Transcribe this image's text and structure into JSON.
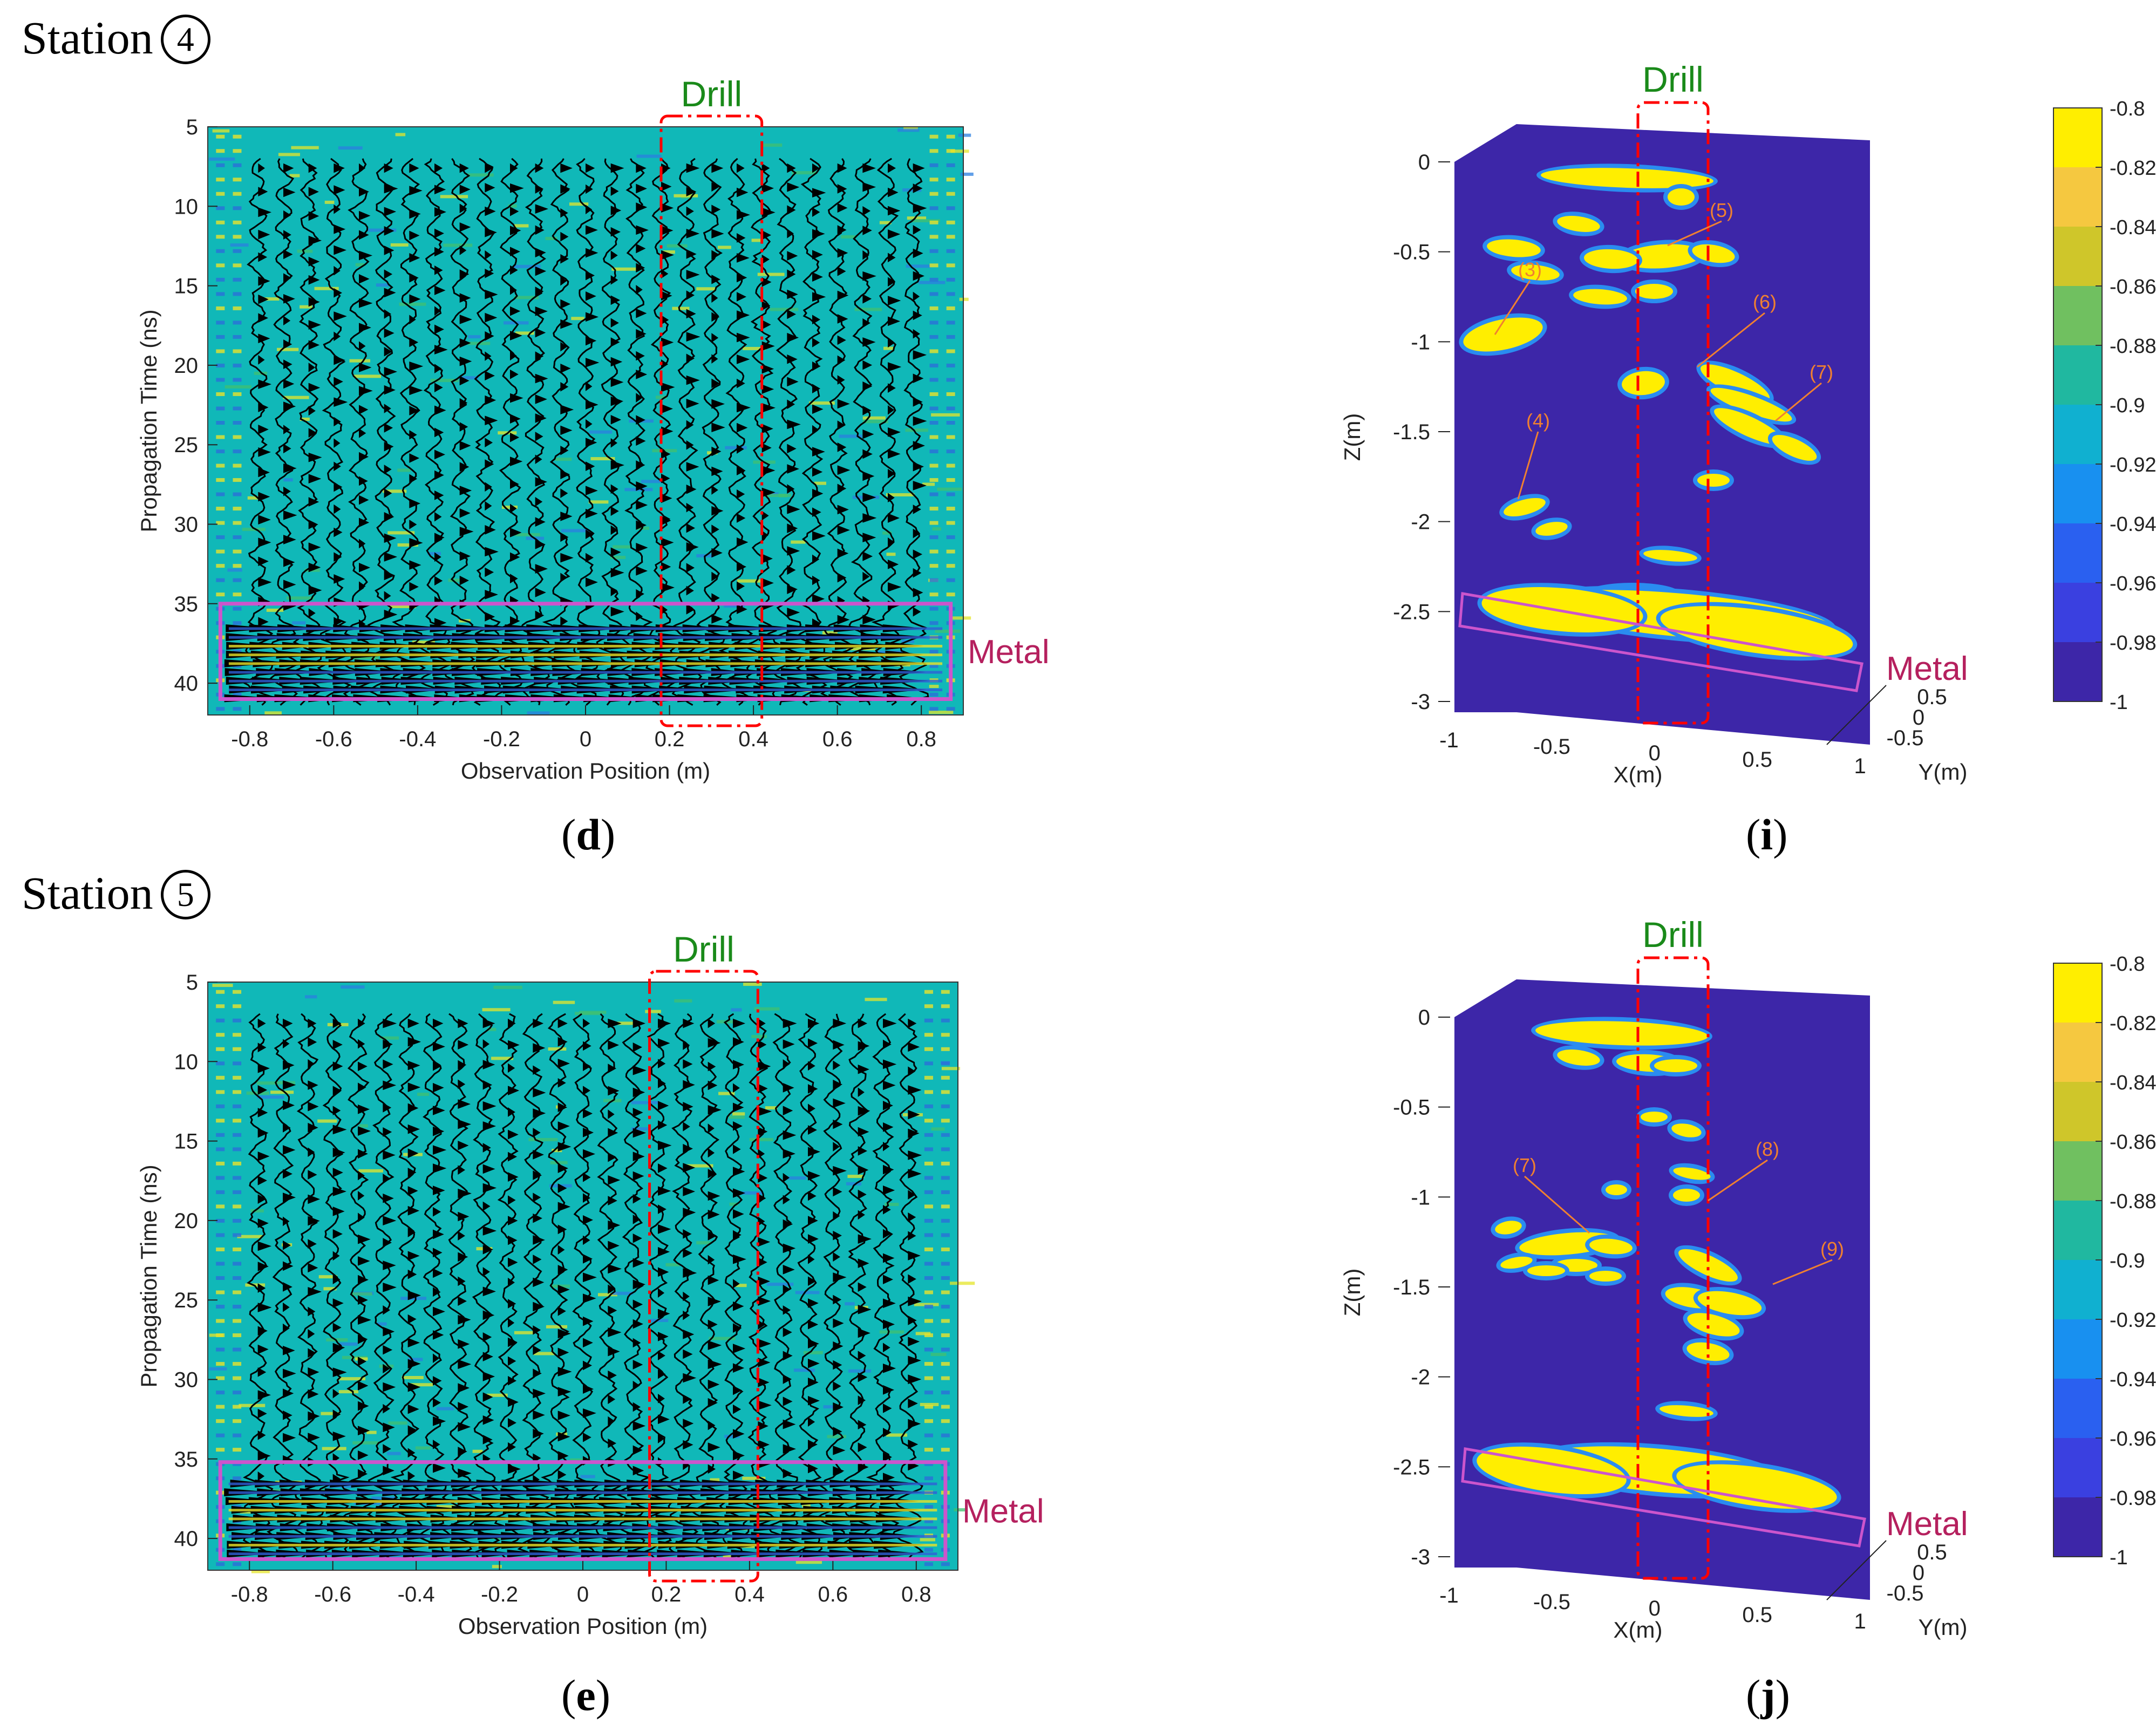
{
  "stations": [
    {
      "label": "Station",
      "number": "4"
    },
    {
      "label": "Station",
      "number": "5"
    }
  ],
  "panel_labels": [
    "d",
    "i",
    "e",
    "j"
  ],
  "colors": {
    "drill_text": "#1a8a1a",
    "drill_box": "#ff0000",
    "metal_text": "#b5205e",
    "metal_box": "#cc55cc",
    "background_field": "#10b8b8",
    "volume_bg": "#3d26a8",
    "anomaly": "#ffee00"
  },
  "chart_data": [
    {
      "id": "d",
      "type": "heatmap",
      "title": "",
      "xlabel": "Observation Position (m)",
      "ylabel": "Propagation Time (ns)",
      "xlim": [
        -0.9,
        0.9
      ],
      "ylim": [
        42,
        5
      ],
      "xticks": [
        "-0.8",
        "-0.6",
        "-0.4",
        "-0.2",
        "0",
        "0.2",
        "0.4",
        "0.6",
        "0.8"
      ],
      "yticks": [
        "5",
        "10",
        "15",
        "20",
        "25",
        "30",
        "35",
        "40"
      ],
      "annotations": {
        "drill": "Drill",
        "metal": "Metal"
      },
      "drill_x": [
        0.18,
        0.42
      ],
      "metal_t": [
        35,
        41
      ],
      "metal_x": [
        -0.87,
        0.87
      ],
      "traces_x": [
        -0.78,
        -0.72,
        -0.66,
        -0.6,
        -0.54,
        -0.48,
        -0.42,
        -0.36,
        -0.3,
        -0.24,
        -0.18,
        -0.12,
        -0.06,
        0.0,
        0.06,
        0.12,
        0.18,
        0.24,
        0.3,
        0.36,
        0.42,
        0.48,
        0.54,
        0.6,
        0.66,
        0.72,
        0.78
      ]
    },
    {
      "id": "i",
      "type": "heatmap",
      "title": "",
      "xlabel": "X(m)",
      "ylabel": "Z(m)",
      "zlabel": "Y(m)",
      "xticks": [
        "-1",
        "-0.5",
        "0",
        "0.5",
        "1"
      ],
      "zticks": [
        "0",
        "-0.5",
        "-1",
        "-1.5",
        "-2",
        "-2.5",
        "-3"
      ],
      "yticks": [
        "0.5",
        "0",
        "-0.5"
      ],
      "colorbar": {
        "ticks": [
          "-0.8",
          "-0.82",
          "-0.84",
          "-0.86",
          "-0.88",
          "-0.9",
          "-0.92",
          "-0.94",
          "-0.96",
          "-0.98",
          "-1"
        ],
        "range": [
          -1,
          -0.8
        ]
      },
      "annotations": {
        "drill": "Drill",
        "metal": "Metal"
      },
      "markers": [
        "(3)",
        "(4)",
        "(5)",
        "(6)",
        "(7)"
      ]
    },
    {
      "id": "e",
      "type": "heatmap",
      "title": "",
      "xlabel": "Observation Position (m)",
      "ylabel": "Propagation Time (ns)",
      "xlim": [
        -0.9,
        0.9
      ],
      "ylim": [
        42,
        5
      ],
      "xticks": [
        "-0.8",
        "-0.6",
        "-0.4",
        "-0.2",
        "0",
        "0.2",
        "0.4",
        "0.6",
        "0.8"
      ],
      "yticks": [
        "5",
        "10",
        "15",
        "20",
        "25",
        "30",
        "35",
        "40"
      ],
      "annotations": {
        "drill": "Drill",
        "metal": "Metal"
      },
      "drill_x": [
        0.16,
        0.42
      ],
      "metal_t": [
        35.2,
        41.3
      ],
      "metal_x": [
        -0.87,
        0.87
      ],
      "traces_x": [
        -0.78,
        -0.72,
        -0.66,
        -0.6,
        -0.54,
        -0.48,
        -0.42,
        -0.36,
        -0.3,
        -0.24,
        -0.18,
        -0.12,
        -0.06,
        0.0,
        0.06,
        0.12,
        0.18,
        0.24,
        0.3,
        0.36,
        0.42,
        0.48,
        0.54,
        0.6,
        0.66,
        0.72,
        0.78
      ]
    },
    {
      "id": "j",
      "type": "heatmap",
      "title": "",
      "xlabel": "X(m)",
      "ylabel": "Z(m)",
      "zlabel": "Y(m)",
      "xticks": [
        "-1",
        "-0.5",
        "0",
        "0.5",
        "1"
      ],
      "zticks": [
        "0",
        "-0.5",
        "-1",
        "-1.5",
        "-2",
        "-2.5",
        "-3"
      ],
      "yticks": [
        "0.5",
        "0",
        "-0.5"
      ],
      "colorbar": {
        "ticks": [
          "-0.8",
          "-0.82",
          "-0.84",
          "-0.86",
          "-0.88",
          "-0.9",
          "-0.92",
          "-0.94",
          "-0.96",
          "-0.98",
          "-1"
        ],
        "range": [
          -1,
          -0.8
        ]
      },
      "annotations": {
        "drill": "Drill",
        "metal": "Metal"
      },
      "markers": [
        "(7)",
        "(8)",
        "(9)"
      ]
    }
  ]
}
